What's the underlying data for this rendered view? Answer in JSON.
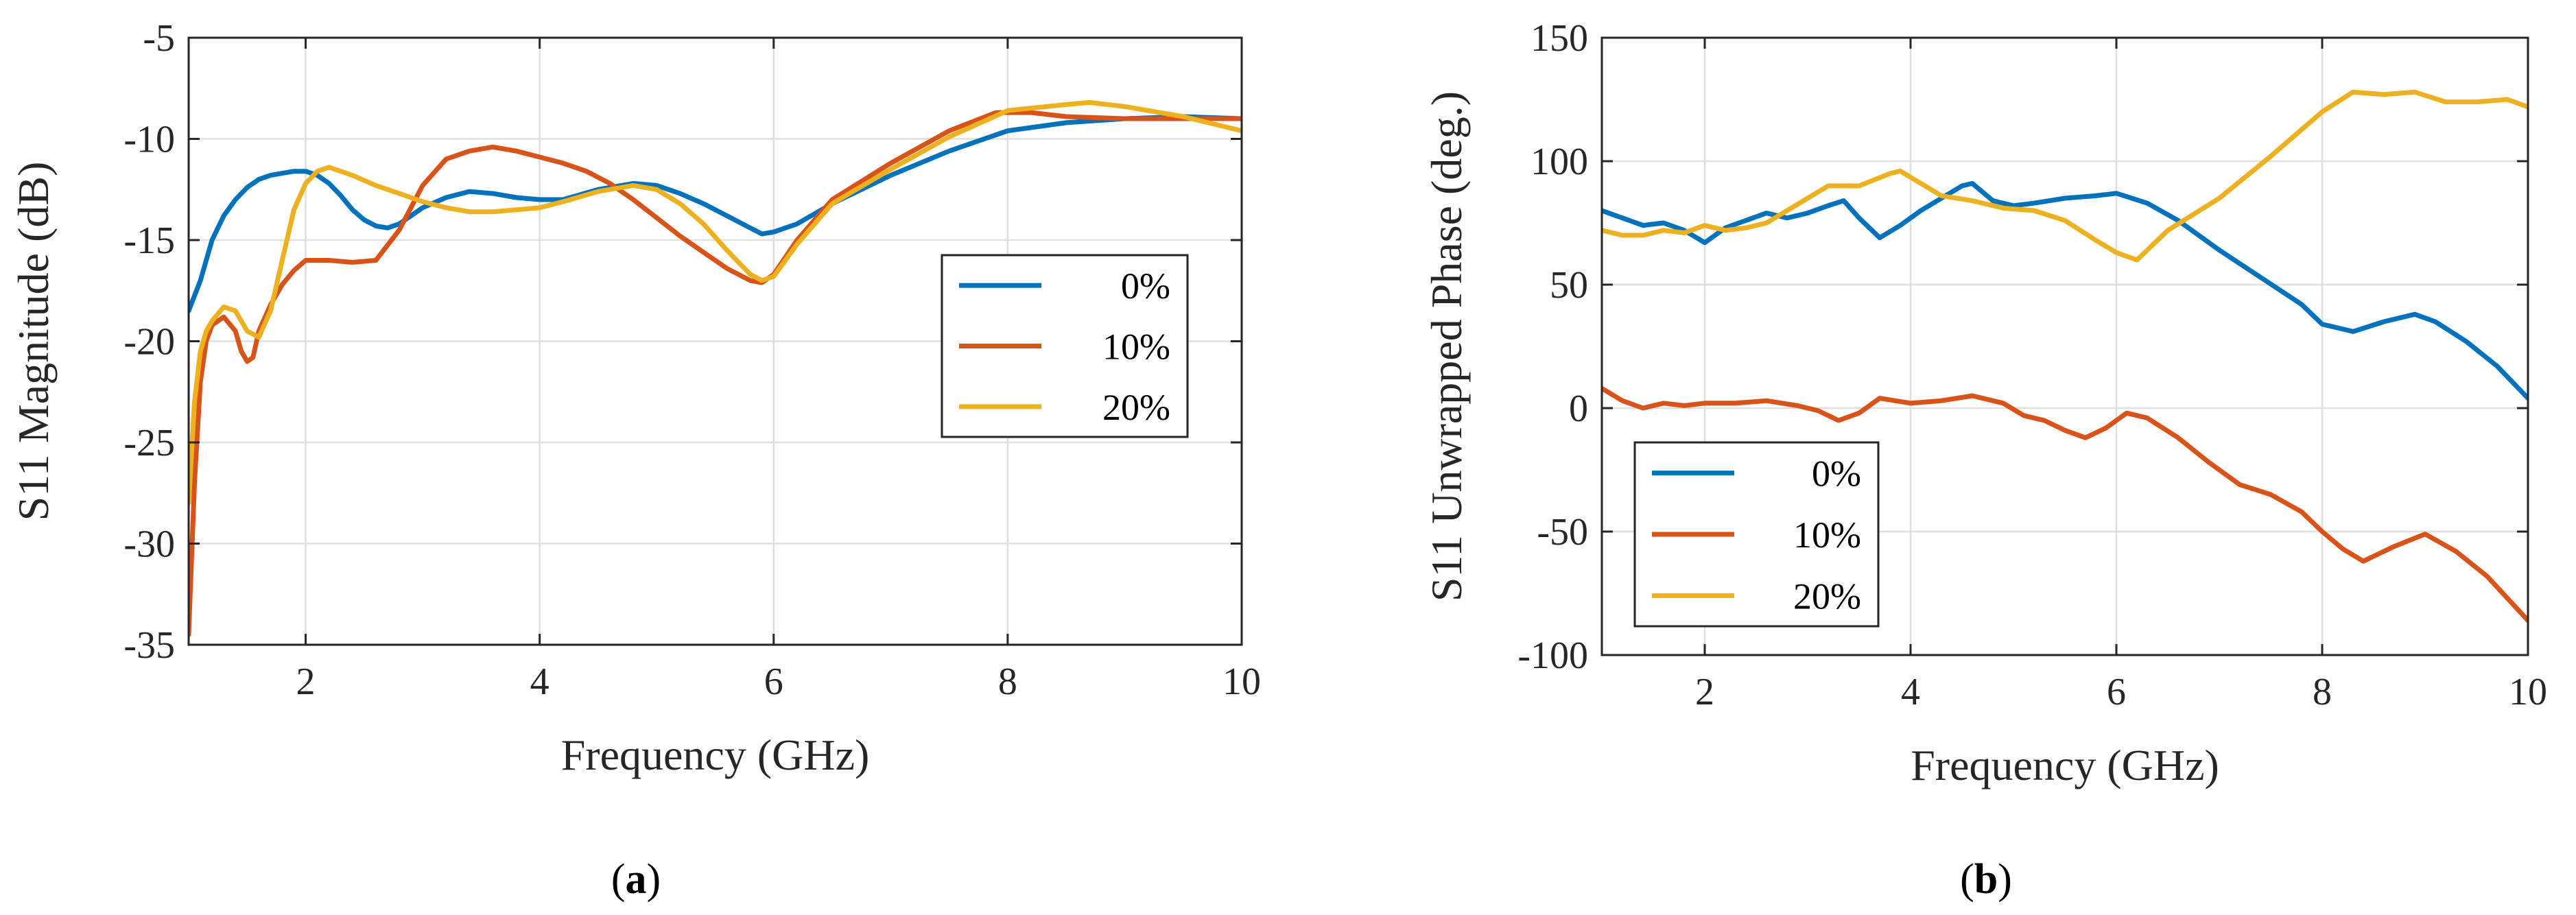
{
  "captions": {
    "a": "a",
    "b": "b"
  },
  "chart_data": [
    {
      "id": "a",
      "type": "line",
      "xlabel": "Frequency (GHz)",
      "ylabel": "S11 Magnitude (dB)",
      "xlim": [
        1,
        10
      ],
      "ylim": [
        -35,
        -5
      ],
      "xticks": [
        2,
        4,
        6,
        8,
        10
      ],
      "yticks": [
        -35,
        -30,
        -25,
        -20,
        -15,
        -10,
        -5
      ],
      "grid": true,
      "legend": "center-right",
      "series": [
        {
          "name": "0%",
          "color": "#0072BD",
          "x": [
            1.0,
            1.1,
            1.2,
            1.3,
            1.4,
            1.5,
            1.6,
            1.7,
            1.8,
            1.9,
            2.0,
            2.1,
            2.2,
            2.3,
            2.4,
            2.5,
            2.6,
            2.7,
            2.8,
            2.9,
            3.0,
            3.2,
            3.4,
            3.6,
            3.8,
            4.0,
            4.2,
            4.5,
            4.8,
            5.0,
            5.2,
            5.4,
            5.6,
            5.8,
            5.9,
            6.0,
            6.2,
            6.5,
            7.0,
            7.5,
            8.0,
            8.5,
            9.0,
            9.5,
            10.0
          ],
          "y": [
            -18.5,
            -17,
            -15,
            -13.8,
            -13,
            -12.4,
            -12,
            -11.8,
            -11.7,
            -11.6,
            -11.6,
            -11.8,
            -12.2,
            -12.8,
            -13.5,
            -14,
            -14.3,
            -14.4,
            -14.2,
            -13.8,
            -13.4,
            -12.9,
            -12.6,
            -12.7,
            -12.9,
            -13,
            -13,
            -12.5,
            -12.2,
            -12.3,
            -12.7,
            -13.2,
            -13.8,
            -14.4,
            -14.7,
            -14.6,
            -14.2,
            -13.2,
            -11.8,
            -10.6,
            -9.6,
            -9.2,
            -9.0,
            -8.9,
            -9.0
          ]
        },
        {
          "name": "10%",
          "color": "#D95319",
          "x": [
            1.0,
            1.05,
            1.1,
            1.15,
            1.2,
            1.3,
            1.4,
            1.45,
            1.5,
            1.55,
            1.6,
            1.7,
            1.8,
            1.9,
            2.0,
            2.2,
            2.4,
            2.6,
            2.8,
            3.0,
            3.2,
            3.4,
            3.6,
            3.8,
            4.0,
            4.2,
            4.4,
            4.6,
            4.8,
            5.0,
            5.2,
            5.4,
            5.6,
            5.8,
            5.9,
            6.0,
            6.2,
            6.5,
            7.0,
            7.5,
            7.9,
            8.2,
            8.5,
            9.0,
            9.5,
            10.0
          ],
          "y": [
            -34.5,
            -27,
            -22,
            -20,
            -19.2,
            -18.8,
            -19.5,
            -20.5,
            -21,
            -20.8,
            -19.5,
            -18.2,
            -17.2,
            -16.5,
            -16,
            -16,
            -16.1,
            -16,
            -14.5,
            -12.3,
            -11,
            -10.6,
            -10.4,
            -10.6,
            -10.9,
            -11.2,
            -11.6,
            -12.2,
            -13,
            -13.9,
            -14.8,
            -15.6,
            -16.4,
            -17,
            -17.1,
            -16.7,
            -15,
            -13,
            -11.2,
            -9.6,
            -8.7,
            -8.7,
            -8.9,
            -9.0,
            -9.0,
            -9.0
          ]
        },
        {
          "name": "20%",
          "color": "#EDB120",
          "x": [
            1.0,
            1.05,
            1.1,
            1.15,
            1.2,
            1.3,
            1.4,
            1.5,
            1.6,
            1.7,
            1.8,
            1.9,
            2.0,
            2.1,
            2.2,
            2.4,
            2.6,
            2.8,
            3.0,
            3.2,
            3.4,
            3.6,
            3.8,
            4.0,
            4.2,
            4.5,
            4.8,
            5.0,
            5.2,
            5.4,
            5.6,
            5.8,
            5.9,
            6.0,
            6.2,
            6.5,
            7.0,
            7.5,
            8.0,
            8.5,
            8.7,
            9.0,
            9.5,
            10.0
          ],
          "y": [
            -28,
            -23,
            -20.5,
            -19.5,
            -19,
            -18.3,
            -18.5,
            -19.5,
            -19.8,
            -18.5,
            -16,
            -13.5,
            -12.2,
            -11.6,
            -11.4,
            -11.8,
            -12.3,
            -12.7,
            -13.1,
            -13.4,
            -13.6,
            -13.6,
            -13.5,
            -13.4,
            -13.1,
            -12.6,
            -12.3,
            -12.5,
            -13.2,
            -14.2,
            -15.5,
            -16.7,
            -17,
            -16.8,
            -15.2,
            -13.2,
            -11.5,
            -9.9,
            -8.6,
            -8.3,
            -8.2,
            -8.4,
            -8.9,
            -9.6
          ]
        }
      ]
    },
    {
      "id": "b",
      "type": "line",
      "xlabel": "Frequency (GHz)",
      "ylabel": "S11 Unwrapped Phase (deg.)",
      "xlim": [
        1,
        10
      ],
      "ylim": [
        -100,
        150
      ],
      "xticks": [
        2,
        4,
        6,
        8,
        10
      ],
      "yticks": [
        -100,
        -50,
        0,
        50,
        100,
        150
      ],
      "grid": true,
      "legend": "bottom-left",
      "series": [
        {
          "name": "0%",
          "color": "#0072BD",
          "x": [
            1.0,
            1.2,
            1.4,
            1.6,
            1.8,
            2.0,
            2.2,
            2.4,
            2.6,
            2.8,
            3.0,
            3.2,
            3.35,
            3.5,
            3.7,
            3.9,
            4.1,
            4.3,
            4.5,
            4.6,
            4.8,
            5.0,
            5.2,
            5.5,
            5.8,
            6.0,
            6.3,
            6.6,
            7.0,
            7.4,
            7.8,
            8.0,
            8.3,
            8.6,
            8.9,
            9.1,
            9.4,
            9.7,
            10.0
          ],
          "y": [
            80,
            77,
            74,
            75,
            72,
            67,
            73,
            76,
            79,
            77,
            79,
            82,
            84,
            77,
            69,
            74,
            80,
            85,
            90,
            91,
            84,
            82,
            83,
            85,
            86,
            87,
            83,
            76,
            64,
            53,
            42,
            34,
            31,
            35,
            38,
            35,
            27,
            17,
            4
          ]
        },
        {
          "name": "10%",
          "color": "#D95319",
          "x": [
            1.0,
            1.2,
            1.4,
            1.6,
            1.8,
            2.0,
            2.3,
            2.6,
            2.9,
            3.1,
            3.3,
            3.5,
            3.7,
            4.0,
            4.3,
            4.6,
            4.9,
            5.1,
            5.3,
            5.5,
            5.7,
            5.9,
            6.1,
            6.3,
            6.6,
            6.9,
            7.2,
            7.5,
            7.8,
            8.0,
            8.2,
            8.4,
            8.7,
            9.0,
            9.3,
            9.6,
            10.0
          ],
          "y": [
            8,
            3,
            0,
            2,
            1,
            2,
            2,
            3,
            1,
            -1,
            -5,
            -2,
            4,
            2,
            3,
            5,
            2,
            -3,
            -5,
            -9,
            -12,
            -8,
            -2,
            -4,
            -12,
            -22,
            -31,
            -35,
            -42,
            -50,
            -57,
            -62,
            -56,
            -51,
            -58,
            -68,
            -86
          ]
        },
        {
          "name": "20%",
          "color": "#EDB120",
          "x": [
            1.0,
            1.2,
            1.4,
            1.6,
            1.8,
            2.0,
            2.2,
            2.4,
            2.6,
            2.8,
            3.0,
            3.2,
            3.5,
            3.8,
            3.9,
            4.1,
            4.3,
            4.6,
            4.9,
            5.2,
            5.5,
            5.8,
            6.0,
            6.2,
            6.5,
            7.0,
            7.5,
            8.0,
            8.3,
            8.6,
            8.9,
            9.2,
            9.5,
            9.8,
            10.0
          ],
          "y": [
            72,
            70,
            70,
            72,
            71,
            74,
            72,
            73,
            75,
            80,
            85,
            90,
            90,
            95,
            96,
            91,
            86,
            84,
            81,
            80,
            76,
            68,
            63,
            60,
            72,
            85,
            102,
            120,
            128,
            127,
            128,
            124,
            124,
            125,
            122
          ]
        }
      ]
    }
  ]
}
